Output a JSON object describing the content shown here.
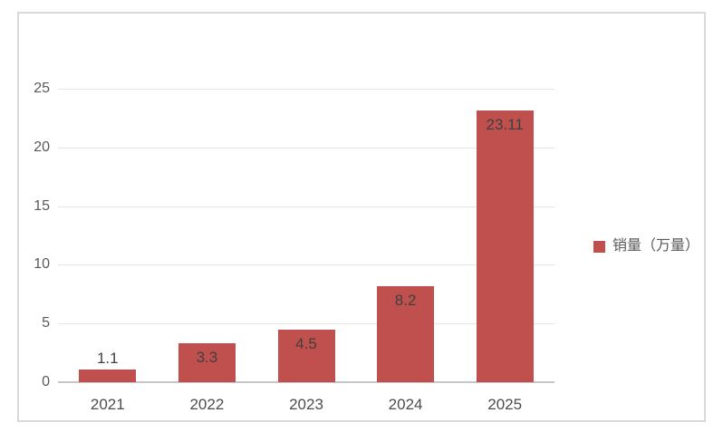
{
  "chart_data": {
    "type": "bar",
    "title": "",
    "categories": [
      "2021",
      "2022",
      "2023",
      "2024",
      "2025"
    ],
    "series": [
      {
        "name": "销量（万量）",
        "values": [
          1.1,
          3.3,
          4.5,
          8.2,
          23.11
        ]
      }
    ],
    "xlabel": "",
    "ylabel": "",
    "ylim": [
      0,
      25
    ],
    "yticks": [
      0,
      5,
      10,
      15,
      20,
      25
    ],
    "grid": "horizontal-major",
    "legend_position": "right",
    "data_labels_visible": true,
    "colors": {
      "bar": "#c0504d",
      "gridline": "#e4e4e4",
      "axis_line": "#c6c6c6",
      "y_tick_label": "#595959",
      "x_tick_label": "#4c4c4c",
      "data_label": "#3f3f3f",
      "legend_text": "#595959",
      "frame_border": "#d9d9d9",
      "background": "#ffffff"
    }
  }
}
